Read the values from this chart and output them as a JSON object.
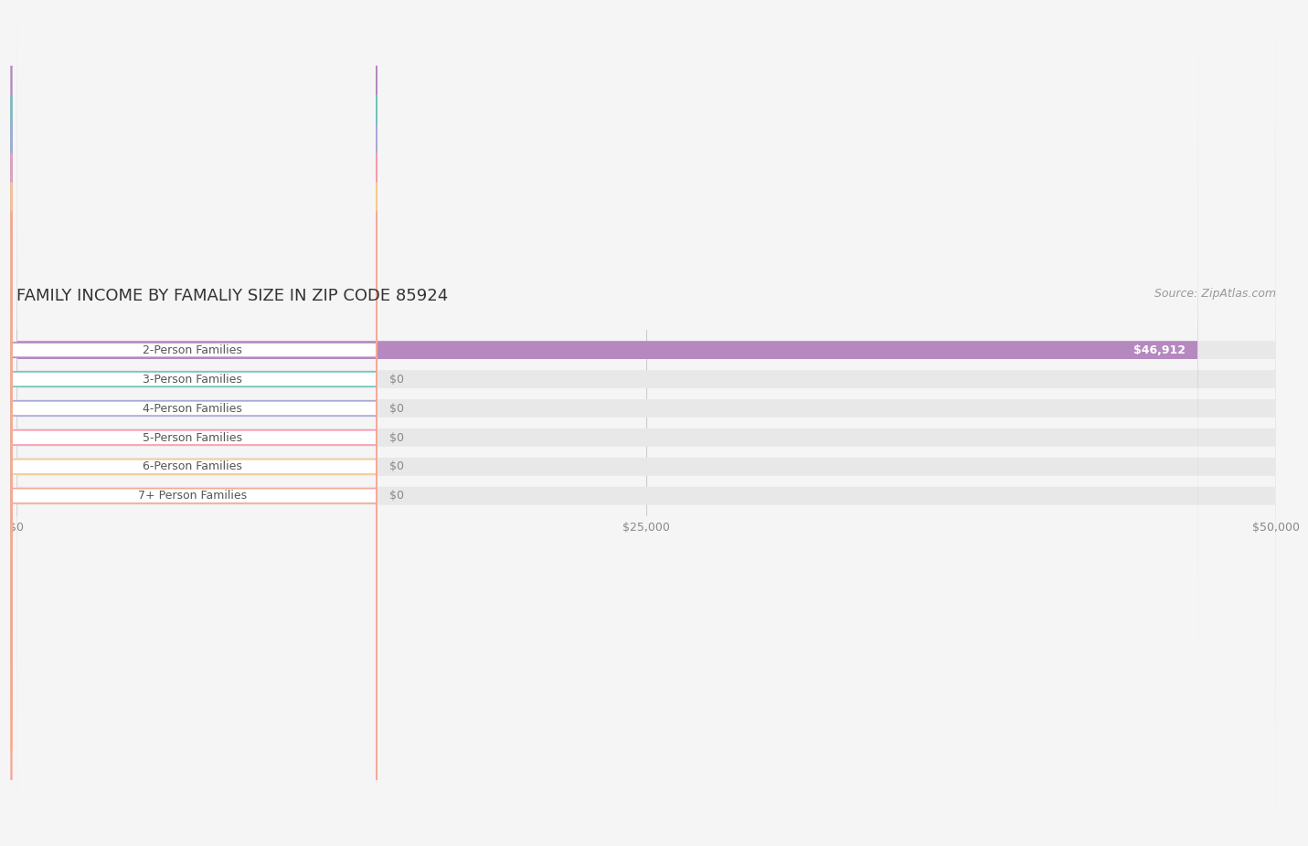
{
  "title": "FAMILY INCOME BY FAMALIY SIZE IN ZIP CODE 85924",
  "source": "Source: ZipAtlas.com",
  "categories": [
    "2-Person Families",
    "3-Person Families",
    "4-Person Families",
    "5-Person Families",
    "6-Person Families",
    "7+ Person Families"
  ],
  "values": [
    46912,
    0,
    0,
    0,
    0,
    0
  ],
  "bar_colors": [
    "#b588c0",
    "#6cc5bb",
    "#a8a8d8",
    "#f79ab0",
    "#f7c98a",
    "#f5a898"
  ],
  "bar_label_colors": [
    "#b588c0",
    "#6cc5bb",
    "#a8a8d8",
    "#f79ab0",
    "#f7c98a",
    "#f5a898"
  ],
  "value_labels": [
    "$46,912",
    "$0",
    "$0",
    "$0",
    "$0",
    "$0"
  ],
  "xlim": [
    0,
    50000
  ],
  "xticks": [
    0,
    25000,
    50000
  ],
  "xtick_labels": [
    "$0",
    "$25,000",
    "$50,000"
  ],
  "background_color": "#f5f5f5",
  "bar_bg_color": "#e8e8e8",
  "title_fontsize": 13,
  "label_fontsize": 9,
  "source_fontsize": 9,
  "bar_height": 0.62
}
